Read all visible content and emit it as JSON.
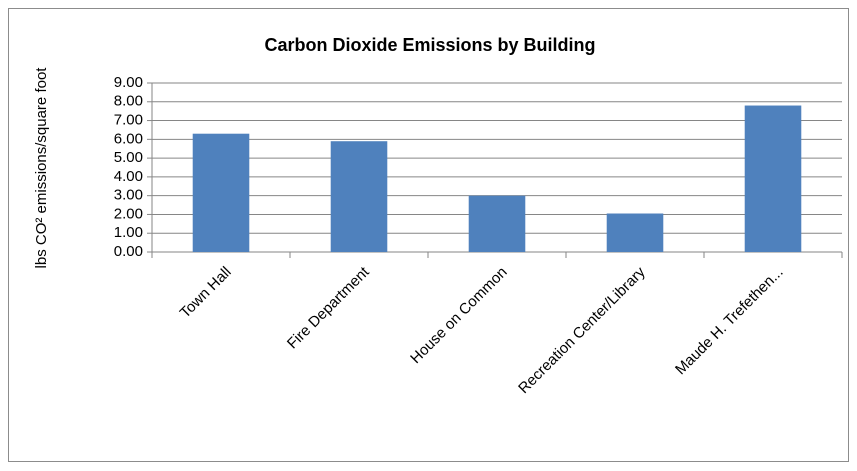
{
  "chart_data": {
    "type": "bar",
    "title": "Carbon Dioxide Emissions by Building",
    "y_label": "lbs CO² emissions/square foot",
    "categories": [
      "Town Hall",
      "Fire Department",
      "House on Common",
      "Recreation Center/Library",
      "Maude H. Trefethen..."
    ],
    "values": [
      6.3,
      5.9,
      3.0,
      2.05,
      7.8
    ],
    "color": "#4f81bd",
    "ylim": [
      0,
      9
    ],
    "yticks": [
      {
        "value": 0,
        "label": "0.00"
      },
      {
        "value": 1,
        "label": "1.00"
      },
      {
        "value": 2,
        "label": "2.00"
      },
      {
        "value": 3,
        "label": "3.00"
      },
      {
        "value": 4,
        "label": "4.00"
      },
      {
        "value": 5,
        "label": "5.00"
      },
      {
        "value": 6,
        "label": "6.00"
      },
      {
        "value": 7,
        "label": "7.00"
      },
      {
        "value": 8,
        "label": "8.00"
      },
      {
        "value": 9,
        "label": "9.00"
      }
    ],
    "grid": true
  }
}
